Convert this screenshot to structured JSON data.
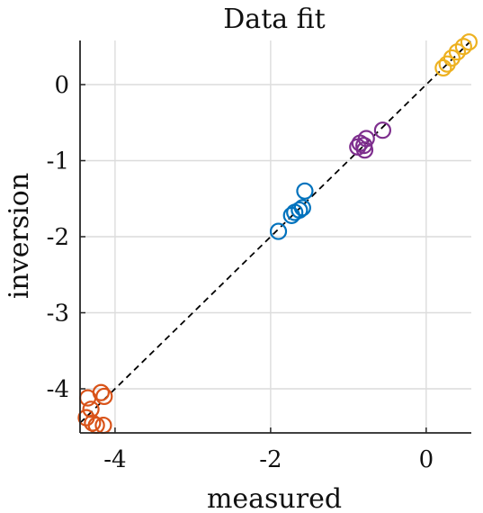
{
  "chart_data": {
    "type": "scatter",
    "title": "Data fit",
    "xlabel": "measured",
    "ylabel": "inversion",
    "xlim": [
      -4.45,
      0.58
    ],
    "ylim": [
      -4.58,
      0.58
    ],
    "grid": true,
    "xticks": [
      -4,
      -2,
      0
    ],
    "xtick_labels": [
      "-4",
      "-2",
      "0"
    ],
    "yticks": [
      0,
      -1,
      -2,
      -3,
      -4
    ],
    "ytick_labels": [
      "0",
      "-1",
      "-2",
      "-3",
      "-4"
    ],
    "reference_line": {
      "style": "dashed",
      "color": "#000000",
      "points": [
        [
          -4.45,
          -4.45
        ],
        [
          0.58,
          0.58
        ]
      ]
    },
    "series": [
      {
        "color": "#D95319",
        "x": [
          -4.18,
          -4.14,
          -4.35,
          -4.31,
          -4.37,
          -4.29,
          -4.24,
          -4.15
        ],
        "y": [
          -4.05,
          -4.1,
          -4.12,
          -4.27,
          -4.38,
          -4.45,
          -4.48,
          -4.48
        ]
      },
      {
        "color": "#0072BD",
        "x": [
          -1.56,
          -1.59,
          -1.63,
          -1.69,
          -1.73,
          -1.9
        ],
        "y": [
          -1.4,
          -1.62,
          -1.65,
          -1.68,
          -1.72,
          -1.93
        ]
      },
      {
        "color": "#7E2F8E",
        "x": [
          -0.56,
          -0.77,
          -0.85,
          -0.8,
          -0.88,
          -0.79
        ],
        "y": [
          -0.6,
          -0.71,
          -0.77,
          -0.8,
          -0.82,
          -0.86
        ]
      },
      {
        "color": "#EDB120",
        "x": [
          0.55,
          0.48,
          0.4,
          0.33,
          0.27,
          0.22
        ],
        "y": [
          0.56,
          0.5,
          0.43,
          0.35,
          0.27,
          0.22
        ]
      }
    ]
  }
}
